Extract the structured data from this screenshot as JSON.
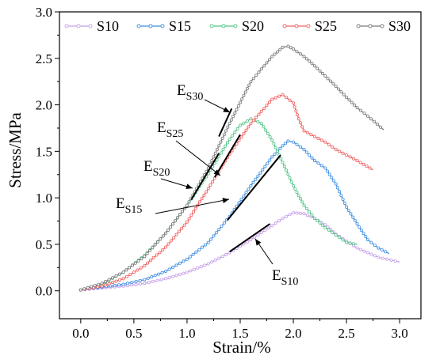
{
  "chart_data": {
    "type": "line",
    "title": "",
    "xlabel": "Strain/%",
    "ylabel": "Stress/MPa",
    "xlim": [
      -0.2,
      3.2
    ],
    "ylim": [
      -0.3,
      3.0
    ],
    "xticks": [
      0.0,
      0.5,
      1.0,
      1.5,
      2.0,
      2.5,
      3.0
    ],
    "xtick_labels": [
      "0.0",
      "0.5",
      "1.0",
      "1.5",
      "2.0",
      "2.5",
      "3.0"
    ],
    "yticks": [
      0.0,
      0.5,
      1.0,
      1.5,
      2.0,
      2.5,
      3.0
    ],
    "ytick_labels": [
      "0.0",
      "0.5",
      "1.0",
      "1.5",
      "2.0",
      "2.5",
      "3.0"
    ],
    "grid": false,
    "legend_position": "top",
    "series": [
      {
        "name": "S10",
        "color": "#c7a0ea",
        "x": [
          0,
          0.2,
          0.4,
          0.6,
          0.8,
          1.0,
          1.2,
          1.4,
          1.6,
          1.8,
          1.9,
          2.0,
          2.1,
          2.2,
          2.3,
          2.4,
          2.6,
          2.8,
          3.0
        ],
        "y": [
          0.01,
          0.03,
          0.05,
          0.08,
          0.13,
          0.2,
          0.29,
          0.41,
          0.55,
          0.7,
          0.78,
          0.84,
          0.83,
          0.78,
          0.71,
          0.61,
          0.46,
          0.36,
          0.31
        ]
      },
      {
        "name": "S15",
        "color": "#3f8ee0",
        "x": [
          0,
          0.2,
          0.4,
          0.6,
          0.8,
          1.0,
          1.2,
          1.4,
          1.6,
          1.8,
          1.9,
          1.95,
          2.0,
          2.1,
          2.2,
          2.3,
          2.4,
          2.5,
          2.6,
          2.7,
          2.8,
          2.9
        ],
        "y": [
          0.01,
          0.04,
          0.07,
          0.12,
          0.21,
          0.34,
          0.52,
          0.8,
          1.13,
          1.44,
          1.56,
          1.61,
          1.6,
          1.52,
          1.4,
          1.32,
          1.15,
          0.9,
          0.72,
          0.55,
          0.46,
          0.4
        ]
      },
      {
        "name": "S20",
        "color": "#55c487",
        "x": [
          0,
          0.2,
          0.4,
          0.6,
          0.8,
          1.0,
          1.2,
          1.4,
          1.5,
          1.6,
          1.7,
          1.8,
          1.9,
          2.0,
          2.1,
          2.2,
          2.3,
          2.4,
          2.5,
          2.6
        ],
        "y": [
          0.01,
          0.07,
          0.2,
          0.38,
          0.62,
          0.92,
          1.26,
          1.63,
          1.78,
          1.85,
          1.8,
          1.62,
          1.38,
          1.13,
          0.92,
          0.78,
          0.68,
          0.6,
          0.52,
          0.5
        ]
      },
      {
        "name": "S25",
        "color": "#f06060",
        "x": [
          0,
          0.2,
          0.4,
          0.6,
          0.8,
          1.0,
          1.2,
          1.4,
          1.6,
          1.8,
          1.9,
          2.0,
          2.05,
          2.1,
          2.2,
          2.3,
          2.4,
          2.5,
          2.6,
          2.75
        ],
        "y": [
          0.01,
          0.05,
          0.13,
          0.27,
          0.47,
          0.74,
          1.1,
          1.47,
          1.8,
          2.06,
          2.11,
          2.02,
          1.85,
          1.72,
          1.66,
          1.6,
          1.52,
          1.46,
          1.4,
          1.3
        ]
      },
      {
        "name": "S30",
        "color": "#7a7a7a",
        "x": [
          0,
          0.2,
          0.4,
          0.6,
          0.8,
          1.0,
          1.2,
          1.4,
          1.6,
          1.8,
          1.9,
          1.95,
          2.0,
          2.1,
          2.2,
          2.3,
          2.4,
          2.5,
          2.6,
          2.7,
          2.85
        ],
        "y": [
          0.01,
          0.08,
          0.2,
          0.37,
          0.62,
          0.92,
          1.32,
          1.8,
          2.25,
          2.52,
          2.62,
          2.63,
          2.6,
          2.52,
          2.42,
          2.31,
          2.2,
          2.08,
          1.97,
          1.88,
          1.73
        ]
      }
    ],
    "tangent_lines": [
      {
        "label": "E",
        "subscript": "S10",
        "x": [
          1.4,
          1.78
        ],
        "y": [
          0.42,
          0.72
        ]
      },
      {
        "label": "E",
        "subscript": "S15",
        "x": [
          1.38,
          1.88
        ],
        "y": [
          0.76,
          1.46
        ]
      },
      {
        "label": "E",
        "subscript": "S20",
        "x": [
          1.04,
          1.3
        ],
        "y": [
          0.98,
          1.48
        ]
      },
      {
        "label": "E",
        "subscript": "S25",
        "x": [
          1.26,
          1.5
        ],
        "y": [
          1.22,
          1.68
        ]
      },
      {
        "label": "E",
        "subscript": "S30",
        "x": [
          1.3,
          1.42
        ],
        "y": [
          1.66,
          1.96
        ]
      }
    ],
    "annotations": [
      {
        "text": "E",
        "sub": "S30"
      },
      {
        "text": "E",
        "sub": "S25"
      },
      {
        "text": "E",
        "sub": "S20"
      },
      {
        "text": "E",
        "sub": "S15"
      },
      {
        "text": "E",
        "sub": "S10"
      }
    ]
  }
}
